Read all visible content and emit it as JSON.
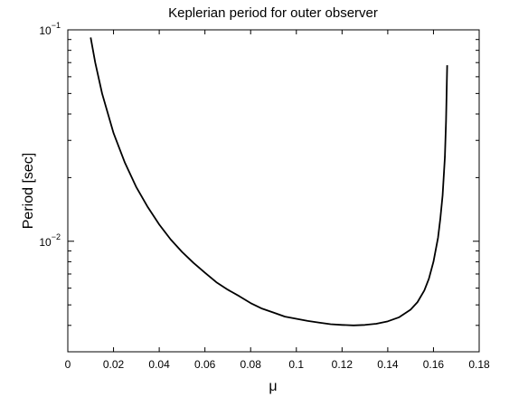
{
  "chart_data": {
    "type": "line",
    "title": "Keplerian period for outer observer",
    "xlabel": "μ",
    "ylabel": "Period  [sec]",
    "xlim": [
      0,
      0.18
    ],
    "ylim": [
      0.003,
      0.1
    ],
    "yscale": "log",
    "grid": false,
    "x_ticks": [
      "0",
      "0.02",
      "0.04",
      "0.06",
      "0.08",
      "0.1",
      "0.12",
      "0.14",
      "0.16",
      "0.18"
    ],
    "x_tick_values": [
      0,
      0.02,
      0.04,
      0.06,
      0.08,
      0.1,
      0.12,
      0.14,
      0.16,
      0.18
    ],
    "y_ticks": [
      {
        "value": 0.1,
        "base": "10",
        "exp": "−1"
      },
      {
        "value": 0.01,
        "base": "10",
        "exp": "−2"
      }
    ],
    "series": [
      {
        "color": "#000000",
        "x": [
          0.01,
          0.012,
          0.015,
          0.02,
          0.025,
          0.03,
          0.035,
          0.04,
          0.045,
          0.05,
          0.055,
          0.06,
          0.065,
          0.07,
          0.075,
          0.08,
          0.085,
          0.09,
          0.095,
          0.1,
          0.105,
          0.11,
          0.115,
          0.12,
          0.125,
          0.13,
          0.135,
          0.14,
          0.145,
          0.15,
          0.153,
          0.156,
          0.158,
          0.16,
          0.162,
          0.163,
          0.164,
          0.165,
          0.1655,
          0.166
        ],
        "y": [
          0.092,
          0.07,
          0.05,
          0.0325,
          0.0235,
          0.018,
          0.0145,
          0.012,
          0.0102,
          0.0089,
          0.0079,
          0.0071,
          0.0064,
          0.0059,
          0.0055,
          0.0051,
          0.0048,
          0.0046,
          0.0044,
          0.0043,
          0.0042,
          0.00412,
          0.00405,
          0.00402,
          0.004,
          0.00402,
          0.00407,
          0.00418,
          0.00437,
          0.00475,
          0.00515,
          0.00585,
          0.00665,
          0.008,
          0.0104,
          0.0128,
          0.0165,
          0.025,
          0.037,
          0.068
        ]
      }
    ]
  }
}
